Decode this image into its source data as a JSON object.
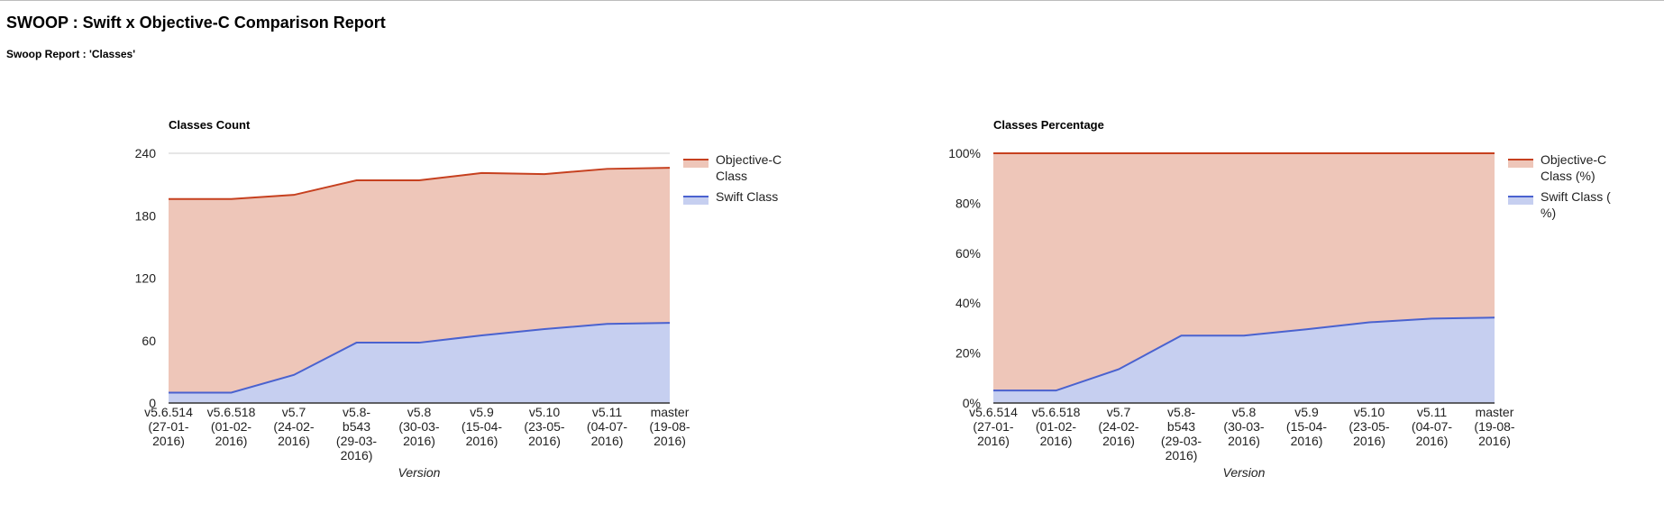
{
  "page": {
    "title": "SWOOP : Swift x Objective-C Comparison Report",
    "subtitle": "Swoop Report : 'Classes'"
  },
  "colors": {
    "objc_line": "#c6401f",
    "objc_fill": "#eec6b9",
    "swift_line": "#4a62cf",
    "swift_fill": "#c6cff0"
  },
  "chart_data": [
    {
      "type": "area",
      "title": "Classes Count",
      "xlabel": "Version",
      "ylabel": "",
      "categories": [
        [
          "v5.6.514",
          "(27-01-",
          "2016)"
        ],
        [
          "v5.6.518",
          "(01-02-",
          "2016)"
        ],
        [
          "v5.7",
          "(24-02-",
          "2016)"
        ],
        [
          "v5.8-",
          "b543",
          "(29-03-",
          "2016)"
        ],
        [
          "v5.8",
          "(30-03-",
          "2016)"
        ],
        [
          "v5.9",
          "(15-04-",
          "2016)"
        ],
        [
          "v5.10",
          "(23-05-",
          "2016)"
        ],
        [
          "v5.11",
          "(04-07-",
          "2016)"
        ],
        [
          "master",
          "(19-08-",
          "2016)"
        ]
      ],
      "ylim": [
        0,
        240
      ],
      "yticks": [
        "0",
        "60",
        "120",
        "180",
        "240"
      ],
      "legend_position": "right",
      "grid": true,
      "series": [
        {
          "name": [
            "Objective-C",
            "Class"
          ],
          "values": [
            196,
            196,
            200,
            214,
            214,
            221,
            220,
            225,
            226
          ],
          "color": "#c6401f",
          "fill": "#eec6b9"
        },
        {
          "name": [
            "Swift Class"
          ],
          "values": [
            10,
            10,
            27,
            58,
            58,
            65,
            71,
            76,
            77
          ],
          "color": "#4a62cf",
          "fill": "#c6cff0"
        }
      ]
    },
    {
      "type": "area",
      "title": "Classes Percentage",
      "xlabel": "Version",
      "ylabel": "",
      "categories": [
        [
          "v5.6.514",
          "(27-01-",
          "2016)"
        ],
        [
          "v5.6.518",
          "(01-02-",
          "2016)"
        ],
        [
          "v5.7",
          "(24-02-",
          "2016)"
        ],
        [
          "v5.8-",
          "b543",
          "(29-03-",
          "2016)"
        ],
        [
          "v5.8",
          "(30-03-",
          "2016)"
        ],
        [
          "v5.9",
          "(15-04-",
          "2016)"
        ],
        [
          "v5.10",
          "(23-05-",
          "2016)"
        ],
        [
          "v5.11",
          "(04-07-",
          "2016)"
        ],
        [
          "master",
          "(19-08-",
          "2016)"
        ]
      ],
      "ylim": [
        0,
        100
      ],
      "yticks": [
        "0%",
        "20%",
        "40%",
        "60%",
        "80%",
        "100%"
      ],
      "legend_position": "right",
      "grid": true,
      "series": [
        {
          "name": [
            "Objective-C",
            "Class (%)"
          ],
          "values": [
            100,
            100,
            100,
            100,
            100,
            100,
            100,
            100,
            100
          ],
          "color": "#c6401f",
          "fill": "#eec6b9"
        },
        {
          "name": [
            "Swift Class (",
            "%)"
          ],
          "values": [
            5,
            5,
            13.5,
            27,
            27,
            29.5,
            32.3,
            33.8,
            34.2
          ],
          "color": "#4a62cf",
          "fill": "#c6cff0"
        }
      ]
    }
  ]
}
